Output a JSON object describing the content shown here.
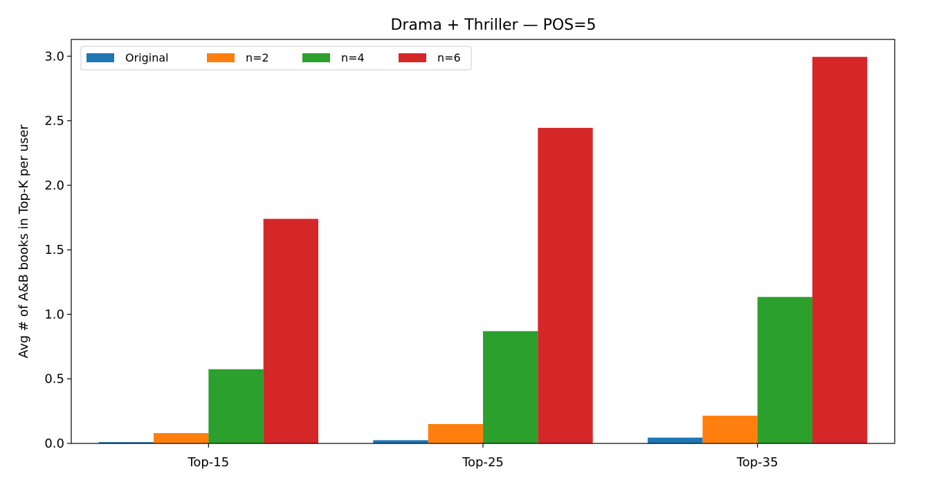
{
  "chart_data": {
    "type": "bar",
    "title": "Drama + Thriller — POS=5",
    "xlabel": "",
    "ylabel": "Avg # of A&B books in Top-K per user",
    "categories": [
      "Top-15",
      "Top-25",
      "Top-35"
    ],
    "series": [
      {
        "name": "Original",
        "color": "#1f77b4",
        "values": [
          0.01,
          0.025,
          0.045
        ]
      },
      {
        "name": "n=2",
        "color": "#ff7f0e",
        "values": [
          0.08,
          0.15,
          0.215
        ]
      },
      {
        "name": "n=4",
        "color": "#2ca02c",
        "values": [
          0.575,
          0.87,
          1.135
        ]
      },
      {
        "name": "n=6",
        "color": "#d62728",
        "values": [
          1.74,
          2.445,
          2.995
        ]
      }
    ],
    "ylim": [
      0,
      3.13
    ],
    "yticks": [
      0.0,
      0.5,
      1.0,
      1.5,
      2.0,
      2.5,
      3.0
    ],
    "ytick_labels": [
      "0.0",
      "0.5",
      "1.0",
      "1.5",
      "2.0",
      "2.5",
      "3.0"
    ],
    "grid": false,
    "legend_position": "top-left"
  }
}
